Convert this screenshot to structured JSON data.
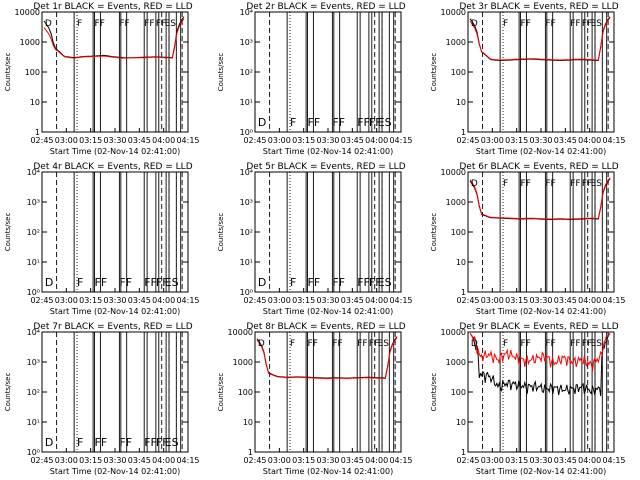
{
  "chart_data": [
    {
      "id": "1r",
      "type": "line",
      "title": "Det 1r BLACK = Events, RED = LLD",
      "scale": "count",
      "has_data": true,
      "black_values": [
        5000,
        650,
        330,
        300,
        330,
        340,
        360,
        320,
        300,
        300,
        310,
        320,
        310,
        300,
        7000
      ],
      "red_values": [
        3000,
        600,
        320,
        290,
        320,
        330,
        340,
        310,
        290,
        300,
        300,
        310,
        300,
        290,
        6000
      ],
      "xlabel": "Start Time (02-Nov-14 02:41:00)",
      "ylabel": "Counts/sec",
      "ytick_labels": [
        "10000",
        "1000",
        "100",
        "10",
        "1"
      ],
      "xtick_labels": [
        "02:45",
        "03:00",
        "03:15",
        "03:30",
        "03:45",
        "04:00",
        "04:15"
      ]
    },
    {
      "id": "2r",
      "type": "line",
      "title": "Det 2r BLACK = Events, RED = LLD",
      "scale": "exp",
      "has_data": false,
      "xlabel": "Start Time (02-Nov-14 02:41:00)",
      "ylabel": "Counts/sec",
      "ytick_labels": [
        "10⁴",
        "10³",
        "10²",
        "10¹",
        "10⁰"
      ],
      "xtick_labels": [
        "02:45",
        "03:00",
        "03:15",
        "03:30",
        "03:45",
        "04:00",
        "04:15"
      ]
    },
    {
      "id": "3r",
      "type": "line",
      "title": "Det 3r BLACK = Events, RED = LLD",
      "scale": "count",
      "has_data": true,
      "black_values": [
        6000,
        500,
        260,
        240,
        250,
        260,
        270,
        260,
        250,
        240,
        250,
        260,
        250,
        240,
        7000
      ],
      "red_values": [
        5000,
        520,
        270,
        250,
        260,
        270,
        280,
        270,
        260,
        250,
        260,
        270,
        260,
        250,
        6500
      ],
      "xlabel": "Start Time (02-Nov-14 02:41:00)",
      "ylabel": "Counts/sec",
      "ytick_labels": [
        "10000",
        "1000",
        "100",
        "10",
        "1"
      ],
      "xtick_labels": [
        "02:45",
        "03:00",
        "03:15",
        "03:30",
        "03:45",
        "04:00",
        "04:15"
      ]
    },
    {
      "id": "4r",
      "type": "line",
      "title": "Det 4r BLACK = Events, RED = LLD",
      "scale": "exp",
      "has_data": false,
      "xlabel": "Start Time (02-Nov-14 02:41:00)",
      "ylabel": "Counts/sec",
      "ytick_labels": [
        "10⁴",
        "10³",
        "10²",
        "10¹",
        "10⁰"
      ],
      "xtick_labels": [
        "02:45",
        "03:00",
        "03:15",
        "03:30",
        "03:45",
        "04:00",
        "04:15"
      ]
    },
    {
      "id": "5r",
      "type": "line",
      "title": "Det 5r BLACK = Events, RED = LLD",
      "scale": "exp",
      "has_data": false,
      "xlabel": "Start Time (02-Nov-14 02:41:00)",
      "ylabel": "Counts/sec",
      "ytick_labels": [
        "10⁴",
        "10³",
        "10²",
        "10¹",
        "10⁰"
      ],
      "xtick_labels": [
        "02:45",
        "03:00",
        "03:15",
        "03:30",
        "03:45",
        "04:00",
        "04:15"
      ]
    },
    {
      "id": "6r",
      "type": "line",
      "title": "Det 6r BLACK = Events, RED = LLD",
      "scale": "count",
      "has_data": true,
      "black_values": [
        5000,
        400,
        300,
        290,
        280,
        270,
        280,
        270,
        260,
        270,
        260,
        270,
        280,
        270,
        6000
      ],
      "red_values": [
        5500,
        420,
        310,
        300,
        290,
        280,
        290,
        280,
        270,
        280,
        270,
        280,
        290,
        280,
        6500
      ],
      "xlabel": "Start Time (02-Nov-14 02:41:00)",
      "ylabel": "Counts/sec",
      "ytick_labels": [
        "10000",
        "1000",
        "100",
        "10",
        "1"
      ],
      "xtick_labels": [
        "02:45",
        "03:00",
        "03:15",
        "03:30",
        "03:45",
        "04:00",
        "04:15"
      ]
    },
    {
      "id": "7r",
      "type": "line",
      "title": "Det 7r BLACK = Events, RED = LLD",
      "scale": "exp",
      "has_data": false,
      "xlabel": "Start Time (02-Nov-14 02:41:00)",
      "ylabel": "Counts/sec",
      "ytick_labels": [
        "10⁴",
        "10³",
        "10²",
        "10¹",
        "10⁰"
      ],
      "xtick_labels": [
        "02:45",
        "03:00",
        "03:15",
        "03:30",
        "03:45",
        "04:00",
        "04:15"
      ]
    },
    {
      "id": "8r",
      "type": "line",
      "title": "Det 8r BLACK = Events, RED = LLD",
      "scale": "count",
      "has_data": true,
      "black_values": [
        6000,
        450,
        330,
        310,
        320,
        310,
        300,
        290,
        300,
        290,
        300,
        310,
        300,
        290,
        7000
      ],
      "red_values": [
        5500,
        430,
        320,
        300,
        310,
        300,
        290,
        280,
        290,
        280,
        290,
        300,
        290,
        280,
        6500
      ],
      "xlabel": "Start Time (02-Nov-14 02:41:00)",
      "ylabel": "Counts/sec",
      "ytick_labels": [
        "10000",
        "1000",
        "100",
        "10",
        "1"
      ],
      "xtick_labels": [
        "02:45",
        "03:00",
        "03:15",
        "03:30",
        "03:45",
        "04:00",
        "04:15"
      ]
    },
    {
      "id": "9r",
      "type": "line",
      "title": "Det 9r BLACK = Events, RED = LLD",
      "scale": "count",
      "has_data": true,
      "noisy": true,
      "black_values": [
        9000,
        400,
        350,
        150,
        200,
        180,
        150,
        160,
        130,
        140,
        120,
        130,
        150,
        110,
        130,
        9000
      ],
      "red_values": [
        9000,
        1500,
        1800,
        1200,
        2000,
        1400,
        1100,
        1300,
        1600,
        900,
        1400,
        1000,
        1200,
        800,
        1500,
        9000
      ],
      "xlabel": "Start Time (02-Nov-14 02:41:00)",
      "ylabel": "Counts/sec",
      "ytick_labels": [
        "10000",
        "1000",
        "100",
        "10",
        "1"
      ],
      "xtick_labels": [
        "02:45",
        "03:00",
        "03:15",
        "03:30",
        "03:45",
        "04:00",
        "04:15"
      ]
    }
  ],
  "markers": {
    "solid_t": [
      0.22,
      0.35,
      0.36,
      0.4,
      0.53,
      0.54,
      0.58,
      0.7,
      0.72,
      0.78,
      0.8,
      0.85,
      0.87,
      0.92,
      0.95,
      1.0
    ],
    "dashed_t": [
      0.1,
      0.82,
      0.87,
      0.96
    ],
    "dotted_t": [
      0.24
    ],
    "letters": [
      {
        "t": 0.02,
        "text": "D"
      },
      {
        "t": 0.24,
        "text": "F"
      },
      {
        "t": 0.36,
        "text": "FF"
      },
      {
        "t": 0.53,
        "text": "FF"
      },
      {
        "t": 0.7,
        "text": "FF"
      },
      {
        "t": 0.78,
        "text": "FF"
      },
      {
        "t": 0.84,
        "text": "ES"
      }
    ]
  }
}
